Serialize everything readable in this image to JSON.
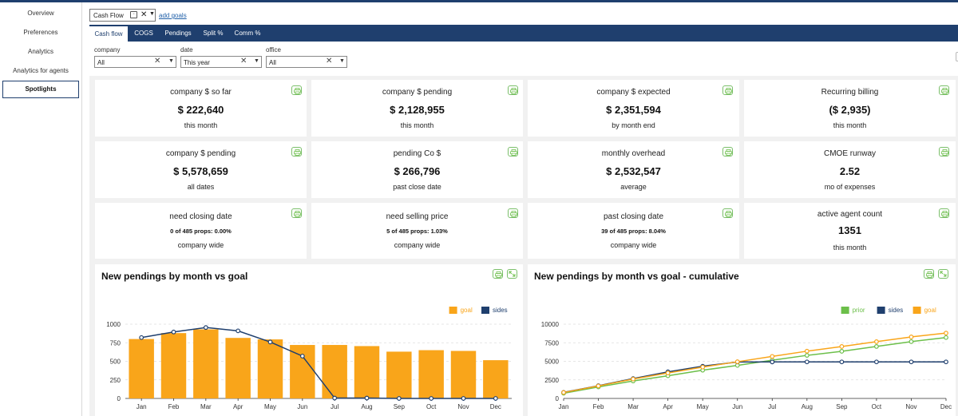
{
  "sidebar": {
    "items": [
      {
        "label": "Overview"
      },
      {
        "label": "Preferences"
      },
      {
        "label": "Analytics"
      },
      {
        "label": "Analytics for agents"
      },
      {
        "label": "Spotlights"
      }
    ]
  },
  "report_selector": {
    "value": "Cash Flow",
    "add_goals": "add goals"
  },
  "tabs": [
    {
      "label": "Cash flow"
    },
    {
      "label": "COGS"
    },
    {
      "label": "Pendings"
    },
    {
      "label": "Split %"
    },
    {
      "label": "Comm %"
    }
  ],
  "filters": {
    "company": {
      "label": "company",
      "value": "All"
    },
    "date": {
      "label": "date",
      "value": "This year"
    },
    "office": {
      "label": "office",
      "value": "All"
    }
  },
  "cards": [
    {
      "title": "company $ so far",
      "value": "$ 222,640",
      "sub": "this month"
    },
    {
      "title": "company $ pending",
      "value": "$ 2,128,955",
      "sub": "this month"
    },
    {
      "title": "company $ expected",
      "value": "$ 2,351,594",
      "sub": "by month end"
    },
    {
      "title": "Recurring billing",
      "value": "($ 2,935)",
      "sub": "this month"
    },
    {
      "title": "company $ pending",
      "value": "$ 5,578,659",
      "sub": "all dates"
    },
    {
      "title": "pending Co $",
      "value": "$ 266,796",
      "sub": "past close date"
    },
    {
      "title": "monthly overhead",
      "value": "$ 2,532,547",
      "sub": "average"
    },
    {
      "title": "CMOE runway",
      "value": "2.52",
      "sub": "mo of expenses"
    },
    {
      "title": "need closing date",
      "detail": "0 of 485 props: 0.00%",
      "sub": "company wide"
    },
    {
      "title": "need selling price",
      "detail": "5 of 485 props: 1.03%",
      "sub": "company wide"
    },
    {
      "title": "past closing date",
      "detail": "39 of 485 props: 8.04%",
      "sub": "company wide"
    },
    {
      "title": "active agent count",
      "value": "1351",
      "sub": "this month"
    }
  ],
  "chart_data": [
    {
      "type": "bar",
      "title": "New pendings by month vs goal",
      "categories": [
        "Jan",
        "Feb",
        "Mar",
        "Apr",
        "May",
        "Jun",
        "Jul",
        "Aug",
        "Sep",
        "Oct",
        "Nov",
        "Dec"
      ],
      "series": [
        {
          "name": "goal",
          "kind": "bar",
          "color": "#f9a51a",
          "values": [
            800,
            880,
            930,
            815,
            795,
            720,
            720,
            705,
            630,
            650,
            640,
            515
          ]
        },
        {
          "name": "sides",
          "kind": "line",
          "color": "#1f3f6e",
          "values": [
            820,
            895,
            955,
            910,
            760,
            570,
            5,
            5,
            0,
            0,
            0,
            0
          ]
        }
      ],
      "ylim": [
        0,
        1000
      ],
      "yticks": [
        0,
        250,
        500,
        750,
        1000
      ],
      "legend": "top-right",
      "grid": true
    },
    {
      "type": "line",
      "title": "New pendings by month vs goal - cumulative",
      "categories": [
        "Jan",
        "Feb",
        "Mar",
        "Apr",
        "May",
        "Jun",
        "Jul",
        "Aug",
        "Sep",
        "Oct",
        "Nov",
        "Dec"
      ],
      "series": [
        {
          "name": "prior",
          "color": "#6cbf4a",
          "values": [
            700,
            1550,
            2350,
            3050,
            3800,
            4450,
            5150,
            5800,
            6350,
            7000,
            7650,
            8200
          ]
        },
        {
          "name": "sides",
          "color": "#1f3f6e",
          "values": [
            820,
            1715,
            2670,
            3580,
            4340,
            4910,
            4915,
            4920,
            4920,
            4920,
            4920,
            4920
          ]
        },
        {
          "name": "goal",
          "color": "#f9a51a",
          "values": [
            800,
            1680,
            2610,
            3425,
            4220,
            4940,
            5660,
            6365,
            6995,
            7645,
            8285,
            8800
          ]
        }
      ],
      "ylim": [
        0,
        10000
      ],
      "yticks": [
        0,
        2500,
        5000,
        7500,
        10000
      ],
      "legend": "top-right",
      "grid": true
    }
  ]
}
